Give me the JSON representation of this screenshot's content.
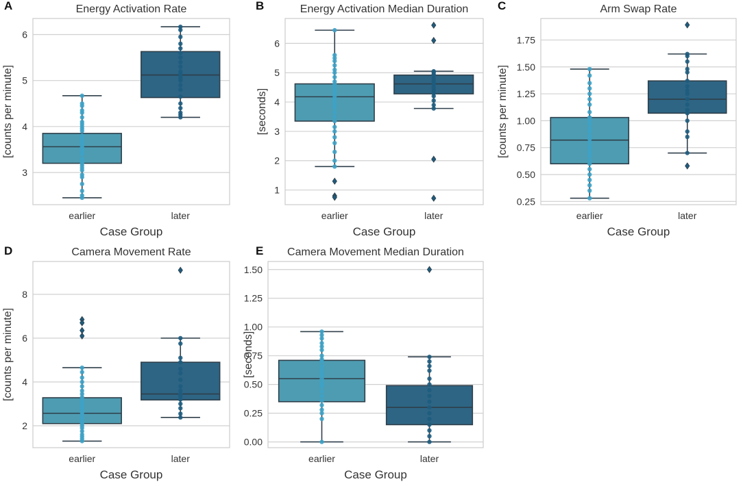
{
  "figure": {
    "colors": {
      "earlier_fill": "#4E9CB1",
      "later_fill": "#2E6584",
      "earlier_points": "#3EA2C6",
      "later_points": "#1E5C7E",
      "line": "#2F3F4A",
      "grid": "#D0D0D0",
      "axes_frame": "#CCCCCC",
      "text": "#333333"
    }
  },
  "chart_data": [
    {
      "panel_label": "A",
      "type": "box",
      "title": "Energy Activation Rate",
      "xlabel": "Case Group",
      "ylabel": "[counts per minute]",
      "ylim": [
        2.3,
        6.35
      ],
      "yticks": [
        3,
        4,
        5,
        6
      ],
      "yticklabels": [
        "3",
        "4",
        "5",
        "6"
      ],
      "categories": [
        "earlier",
        "later"
      ],
      "boxes": [
        {
          "name": "earlier",
          "min": 2.45,
          "q1": 3.2,
          "median": 3.56,
          "q3": 3.85,
          "max": 4.67,
          "outliers": []
        },
        {
          "name": "later",
          "min": 4.2,
          "q1": 4.63,
          "median": 5.12,
          "q3": 5.63,
          "max": 6.17,
          "outliers": []
        }
      ],
      "points": [
        [
          2.45,
          2.5,
          2.6,
          2.75,
          2.9,
          2.95,
          3.05,
          3.1,
          3.15,
          3.2,
          3.25,
          3.3,
          3.4,
          3.45,
          3.5,
          3.55,
          3.6,
          3.65,
          3.7,
          3.75,
          3.8,
          3.9,
          3.95,
          4.0,
          4.05,
          4.1,
          4.2,
          4.3,
          4.35,
          4.45,
          4.5,
          4.67
        ],
        [
          4.2,
          4.25,
          4.3,
          4.4,
          4.5,
          4.65,
          4.8,
          4.9,
          5.0,
          5.05,
          5.1,
          5.15,
          5.2,
          5.3,
          5.4,
          5.5,
          5.6,
          5.7,
          5.8,
          5.95,
          6.1,
          6.17
        ]
      ]
    },
    {
      "panel_label": "B",
      "type": "box",
      "title": "Energy Activation Median Duration",
      "xlabel": "Case Group",
      "ylabel": "[seconds]",
      "ylim": [
        0.5,
        6.85
      ],
      "yticks": [
        1,
        2,
        3,
        4,
        5,
        6
      ],
      "yticklabels": [
        "1",
        "2",
        "3",
        "4",
        "5",
        "6"
      ],
      "categories": [
        "earlier",
        "later"
      ],
      "boxes": [
        {
          "name": "earlier",
          "min": 1.8,
          "q1": 3.35,
          "median": 4.18,
          "q3": 4.62,
          "max": 6.45,
          "outliers": [
            1.3,
            0.8,
            0.75
          ]
        },
        {
          "name": "later",
          "min": 3.78,
          "q1": 4.28,
          "median": 4.62,
          "q3": 4.92,
          "max": 5.05,
          "outliers": [
            6.62,
            6.1,
            2.05,
            0.72
          ]
        }
      ],
      "points": [
        [
          1.8,
          2.0,
          2.3,
          2.6,
          2.8,
          3.0,
          3.15,
          3.35,
          3.5,
          3.65,
          3.8,
          3.9,
          4.0,
          4.1,
          4.2,
          4.3,
          4.4,
          4.5,
          4.6,
          4.7,
          4.85,
          5.0,
          5.1,
          5.25,
          5.4,
          5.5,
          5.6,
          6.45
        ],
        [
          3.78,
          3.9,
          4.05,
          4.2,
          4.3,
          4.4,
          4.5,
          4.6,
          4.65,
          4.72,
          4.8,
          4.9,
          4.95,
          5.02,
          5.05
        ]
      ]
    },
    {
      "panel_label": "C",
      "type": "box",
      "title": "Arm Swap Rate",
      "xlabel": "Case Group",
      "ylabel": "[counts per minute]",
      "ylim": [
        0.22,
        1.95
      ],
      "yticks": [
        0.25,
        0.5,
        0.75,
        1.0,
        1.25,
        1.5,
        1.75
      ],
      "yticklabels": [
        "0.25",
        "0.50",
        "0.75",
        "1.00",
        "1.25",
        "1.50",
        "1.75"
      ],
      "categories": [
        "earlier",
        "later"
      ],
      "boxes": [
        {
          "name": "earlier",
          "min": 0.28,
          "q1": 0.6,
          "median": 0.82,
          "q3": 1.03,
          "max": 1.48,
          "outliers": []
        },
        {
          "name": "later",
          "min": 0.7,
          "q1": 1.07,
          "median": 1.2,
          "q3": 1.37,
          "max": 1.62,
          "outliers": [
            1.89,
            0.58
          ]
        }
      ],
      "points": [
        [
          0.28,
          0.35,
          0.4,
          0.45,
          0.5,
          0.55,
          0.6,
          0.63,
          0.67,
          0.7,
          0.73,
          0.76,
          0.8,
          0.83,
          0.86,
          0.9,
          0.93,
          0.97,
          1.0,
          1.03,
          1.08,
          1.15,
          1.2,
          1.25,
          1.3,
          1.35,
          1.42,
          1.48
        ],
        [
          0.7,
          0.85,
          0.9,
          1.0,
          1.07,
          1.1,
          1.15,
          1.2,
          1.25,
          1.28,
          1.32,
          1.37,
          1.45,
          1.48,
          1.55,
          1.6,
          1.62
        ]
      ]
    },
    {
      "panel_label": "D",
      "type": "box",
      "title": "Camera Movement Rate",
      "xlabel": "Case Group",
      "ylabel": "[counts per minute]",
      "ylim": [
        1.0,
        9.5
      ],
      "yticks": [
        2,
        4,
        6,
        8
      ],
      "yticklabels": [
        "2",
        "4",
        "6",
        "8"
      ],
      "categories": [
        "earlier",
        "later"
      ],
      "boxes": [
        {
          "name": "earlier",
          "min": 1.3,
          "q1": 2.1,
          "median": 2.57,
          "q3": 3.28,
          "max": 4.65,
          "outliers": [
            6.85,
            6.7,
            6.35,
            6.1
          ]
        },
        {
          "name": "later",
          "min": 2.38,
          "q1": 3.18,
          "median": 3.45,
          "q3": 4.9,
          "max": 6.0,
          "outliers": [
            9.1
          ]
        }
      ],
      "points": [
        [
          1.3,
          1.4,
          1.5,
          1.6,
          1.75,
          1.9,
          2.0,
          2.1,
          2.2,
          2.3,
          2.4,
          2.5,
          2.6,
          2.7,
          2.8,
          2.9,
          3.0,
          3.1,
          3.2,
          3.3,
          3.45,
          3.6,
          3.8,
          4.0,
          4.2,
          4.45,
          4.65
        ],
        [
          2.38,
          2.55,
          2.8,
          3.0,
          3.2,
          3.35,
          3.45,
          3.6,
          3.8,
          4.1,
          4.4,
          4.6,
          4.9,
          5.1,
          5.75,
          6.0
        ]
      ]
    },
    {
      "panel_label": "E",
      "type": "box",
      "title": "Camera Movement Median Duration",
      "xlabel": "Case Group",
      "ylabel": "[seconds]",
      "ylim": [
        -0.05,
        1.57
      ],
      "yticks": [
        0.0,
        0.25,
        0.5,
        0.75,
        1.0,
        1.25,
        1.5
      ],
      "yticklabels": [
        "0.00",
        "0.25",
        "0.50",
        "0.75",
        "1.00",
        "1.25",
        "1.50"
      ],
      "categories": [
        "earlier",
        "later"
      ],
      "boxes": [
        {
          "name": "earlier",
          "min": 0.0,
          "q1": 0.35,
          "median": 0.55,
          "q3": 0.71,
          "max": 0.96,
          "outliers": []
        },
        {
          "name": "later",
          "min": 0.0,
          "q1": 0.15,
          "median": 0.3,
          "q3": 0.49,
          "max": 0.74,
          "outliers": [
            1.5
          ]
        }
      ],
      "points": [
        [
          0.0,
          0.2,
          0.25,
          0.28,
          0.32,
          0.36,
          0.4,
          0.44,
          0.48,
          0.5,
          0.52,
          0.55,
          0.58,
          0.6,
          0.63,
          0.66,
          0.7,
          0.72,
          0.75,
          0.8,
          0.83,
          0.86,
          0.9,
          0.93,
          0.96
        ],
        [
          0.0,
          0.05,
          0.1,
          0.15,
          0.2,
          0.25,
          0.3,
          0.35,
          0.4,
          0.45,
          0.5,
          0.55,
          0.62,
          0.66,
          0.7,
          0.74
        ]
      ]
    }
  ]
}
